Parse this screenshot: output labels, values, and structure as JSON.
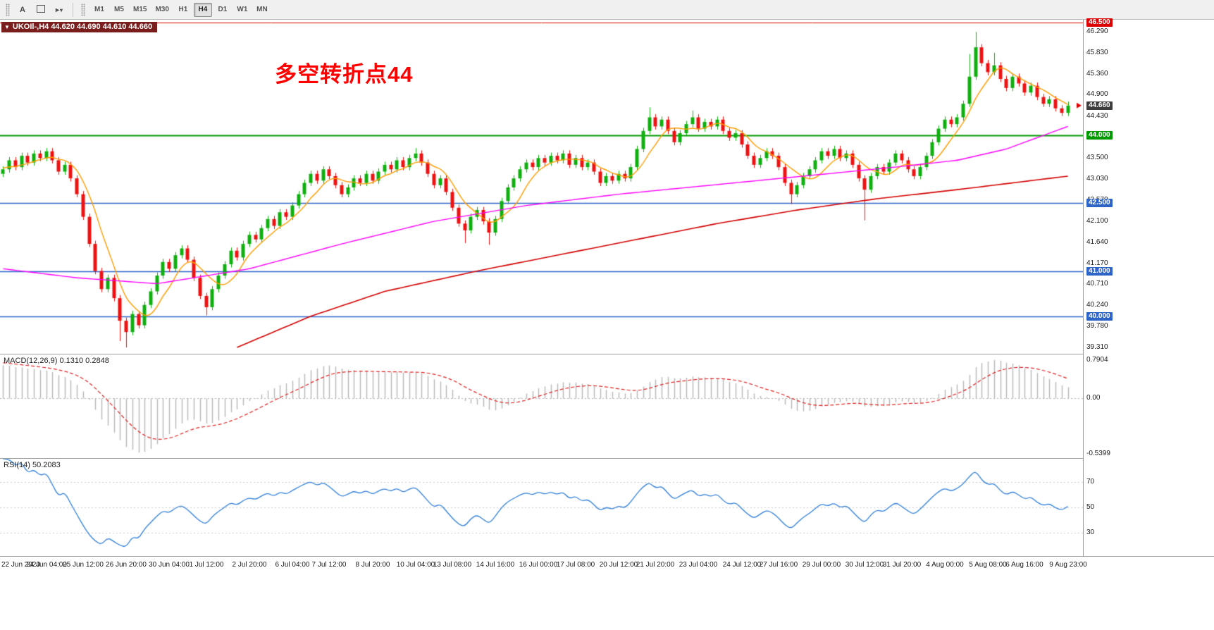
{
  "toolbar": {
    "text_tool_label": "A",
    "timeframes": [
      "M1",
      "M5",
      "M15",
      "M30",
      "H1",
      "H4",
      "D1",
      "W1",
      "MN"
    ],
    "active_timeframe": "H4"
  },
  "chart": {
    "header": "UKOIl-,H4  44.620 44.690 44.610 44.660",
    "annotation": "多空转折点44",
    "annotation_color": "#ff0000"
  },
  "indicators": {
    "macd": {
      "label": "MACD(12,26,9) 0.1310 0.2848",
      "ticks": [
        "0.7904",
        "0.00",
        "-0.5399"
      ]
    },
    "rsi": {
      "label": "RSI(14) 50.2083",
      "ticks": [
        "70",
        "50",
        "30"
      ]
    }
  },
  "price_axis": {
    "ticks": [
      "46.290",
      "45.830",
      "45.360",
      "44.900",
      "44.430",
      "43.960",
      "43.500",
      "43.030",
      "42.570",
      "42.100",
      "41.640",
      "41.170",
      "40.710",
      "40.240",
      "39.780",
      "39.310"
    ],
    "level_tags": [
      {
        "label": "46.500",
        "color": "#dd0000"
      },
      {
        "label": "44.660",
        "color": "#3d3d3d"
      },
      {
        "label": "44.000",
        "color": "#009900"
      },
      {
        "label": "42.500",
        "color": "#2e64c8"
      },
      {
        "label": "41.000",
        "color": "#2e64c8"
      },
      {
        "label": "40.000",
        "color": "#2e64c8"
      }
    ]
  },
  "time_axis": {
    "labels": [
      "22 Jun 2020",
      "24 Jun 04:00",
      "25 Jun 12:00",
      "26 Jun 20:00",
      "30 Jun 04:00",
      "1 Jul 12:00",
      "2 Jul 20:00",
      "6 Jul 04:00",
      "7 Jul 12:00",
      "8 Jul 20:00",
      "10 Jul 04:00",
      "13 Jul 08:00",
      "14 Jul 16:00",
      "16 Jul 00:00",
      "17 Jul 08:00",
      "20 Jul 12:00",
      "21 Jul 20:00",
      "23 Jul 04:00",
      "24 Jul 12:00",
      "27 Jul 16:00",
      "29 Jul 00:00",
      "30 Jul 12:00",
      "31 Jul 20:00",
      "4 Aug 00:00",
      "5 Aug 08:00",
      "6 Aug 16:00",
      "9 Aug 23:00"
    ]
  },
  "chart_data": {
    "type": "candlestick",
    "symbol": "UKOIl-",
    "timeframe": "H4",
    "title": "多空转折点44",
    "ohlc_display": {
      "open": 44.62,
      "high": 44.69,
      "low": 44.61,
      "close": 44.66
    },
    "current_price": 44.66,
    "y_range": [
      39.17,
      46.56
    ],
    "first_open": 43.15,
    "colors": {
      "bull": "#0faf0f",
      "bear": "#ee1111",
      "macd_hist": "#b9b9b9",
      "macd_signal": "#dd2222",
      "rsi_line": "#2f7ed8"
    },
    "levels": [
      {
        "price": 46.5,
        "color": "#dd0000",
        "width": 1
      },
      {
        "price": 44.0,
        "color": "#009900",
        "width": 2
      },
      {
        "price": 42.5,
        "color": "#2e64c8",
        "width": 1.4
      },
      {
        "price": 41.0,
        "color": "#2e64c8",
        "width": 1.4
      },
      {
        "price": 40.0,
        "color": "#2e64c8",
        "width": 1.4
      }
    ],
    "pre_closes": [
      40.6,
      40.7,
      40.85,
      41.0,
      41.1,
      41.25,
      41.4,
      41.5,
      41.65,
      41.8,
      41.9,
      42.0,
      42.15,
      42.3,
      42.4,
      42.5,
      42.6,
      42.7,
      42.8,
      42.9,
      43.0,
      43.05,
      43.1,
      43.15,
      43.2,
      43.25,
      43.3,
      43.3,
      43.25,
      43.3
    ],
    "closes": [
      43.25,
      43.45,
      43.3,
      43.55,
      43.4,
      43.6,
      43.5,
      43.65,
      43.45,
      43.2,
      43.35,
      43.05,
      42.7,
      42.2,
      41.6,
      41.0,
      40.6,
      40.85,
      40.4,
      39.9,
      39.65,
      40.05,
      39.8,
      40.25,
      40.55,
      40.9,
      41.2,
      41.05,
      41.35,
      41.5,
      41.25,
      40.85,
      40.45,
      40.2,
      40.6,
      40.9,
      41.15,
      41.45,
      41.3,
      41.6,
      41.8,
      41.7,
      41.95,
      42.15,
      42.0,
      42.3,
      42.2,
      42.45,
      42.7,
      42.95,
      43.15,
      43.0,
      43.25,
      43.1,
      42.9,
      42.7,
      42.85,
      43.05,
      42.95,
      43.15,
      43.0,
      43.2,
      43.35,
      43.25,
      43.45,
      43.3,
      43.5,
      43.6,
      43.4,
      43.15,
      42.9,
      43.05,
      42.75,
      42.4,
      42.05,
      41.9,
      42.2,
      42.35,
      42.1,
      41.85,
      42.15,
      42.55,
      42.85,
      43.05,
      43.25,
      43.4,
      43.3,
      43.5,
      43.4,
      43.55,
      43.45,
      43.6,
      43.35,
      43.5,
      43.3,
      43.4,
      43.2,
      42.95,
      43.1,
      43.0,
      43.15,
      43.05,
      43.3,
      43.7,
      44.1,
      44.4,
      44.2,
      44.35,
      44.1,
      43.85,
      44.05,
      44.25,
      44.4,
      44.15,
      44.3,
      44.2,
      44.35,
      44.1,
      43.95,
      44.05,
      43.8,
      43.55,
      43.35,
      43.5,
      43.65,
      43.55,
      43.3,
      42.95,
      42.7,
      42.9,
      43.1,
      43.25,
      43.45,
      43.65,
      43.55,
      43.7,
      43.5,
      43.6,
      43.35,
      43.05,
      42.8,
      43.1,
      43.3,
      43.2,
      43.4,
      43.6,
      43.45,
      43.25,
      43.1,
      43.3,
      43.55,
      43.85,
      44.15,
      44.35,
      44.25,
      44.4,
      44.7,
      45.3,
      45.95,
      45.6,
      45.4,
      45.55,
      45.25,
      45.05,
      45.3,
      45.15,
      44.95,
      45.1,
      44.85,
      44.7,
      44.8,
      44.6,
      44.5,
      44.66
    ],
    "wick_overrides": {
      "19": {
        "l": 39.45
      },
      "20": {
        "l": 39.31
      },
      "33": {
        "l": 40.02
      },
      "67": {
        "h": 43.72
      },
      "75": {
        "l": 41.62
      },
      "79": {
        "l": 41.58
      },
      "105": {
        "h": 44.62
      },
      "112": {
        "h": 44.55
      },
      "128": {
        "l": 42.48
      },
      "140": {
        "l": 42.12
      },
      "157": {
        "h": 45.8
      },
      "158": {
        "h": 46.29
      },
      "161": {
        "h": 45.83
      },
      "173": {
        "h": 44.75
      }
    },
    "moving_averages": [
      {
        "name": "ma-fast",
        "color": "#ff9c00",
        "period": 6,
        "width": 1.4
      },
      {
        "name": "ma-mid",
        "color": "#ff00ff",
        "width": 1.4,
        "anchors": [
          [
            0,
            41.05
          ],
          [
            12,
            40.85
          ],
          [
            25,
            40.72
          ],
          [
            40,
            41.05
          ],
          [
            55,
            41.6
          ],
          [
            70,
            42.1
          ],
          [
            85,
            42.45
          ],
          [
            100,
            42.7
          ],
          [
            115,
            42.9
          ],
          [
            130,
            43.1
          ],
          [
            145,
            43.3
          ],
          [
            155,
            43.45
          ],
          [
            163,
            43.7
          ],
          [
            173,
            44.2
          ]
        ]
      },
      {
        "name": "ma-slow",
        "color": "#d40000",
        "width": 1.6,
        "anchors": [
          [
            38,
            39.31
          ],
          [
            50,
            40.0
          ],
          [
            62,
            40.55
          ],
          [
            77,
            41.0
          ],
          [
            90,
            41.35
          ],
          [
            103,
            41.7
          ],
          [
            116,
            42.05
          ],
          [
            129,
            42.35
          ],
          [
            142,
            42.6
          ],
          [
            155,
            42.8
          ],
          [
            164,
            42.95
          ],
          [
            173,
            43.1
          ]
        ]
      }
    ],
    "indicators": {
      "macd": {
        "params": [
          12,
          26,
          9
        ],
        "value": 0.131,
        "signal_value": 0.2848,
        "axis_ticks": [
          0.7904,
          0.0,
          -0.5399
        ]
      },
      "rsi": {
        "period": 14,
        "value": 50.2083,
        "levels": [
          70,
          50,
          30
        ],
        "axis_ticks": [
          70,
          50,
          30
        ]
      }
    },
    "x_labels": [
      "22 Jun 2020",
      "24 Jun 04:00",
      "25 Jun 12:00",
      "26 Jun 20:00",
      "30 Jun 04:00",
      "1 Jul 12:00",
      "2 Jul 20:00",
      "6 Jul 04:00",
      "7 Jul 12:00",
      "8 Jul 20:00",
      "10 Jul 04:00",
      "13 Jul 08:00",
      "14 Jul 16:00",
      "16 Jul 00:00",
      "17 Jul 08:00",
      "20 Jul 12:00",
      "21 Jul 20:00",
      "23 Jul 04:00",
      "24 Jul 12:00",
      "27 Jul 16:00",
      "29 Jul 00:00",
      "30 Jul 12:00",
      "31 Jul 20:00",
      "4 Aug 00:00",
      "5 Aug 08:00",
      "6 Aug 16:00",
      "9 Aug 23:00"
    ]
  }
}
